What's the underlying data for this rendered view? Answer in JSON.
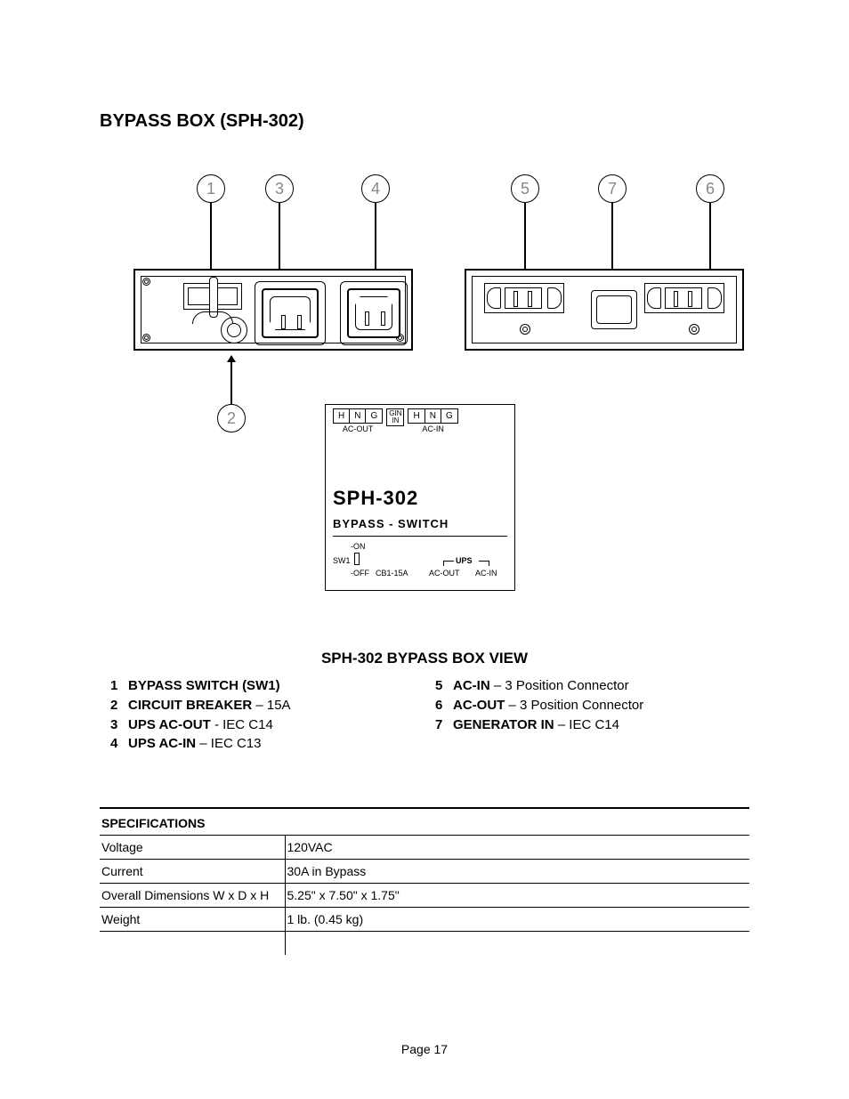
{
  "title": "BYPASS BOX (SPH-302)",
  "callouts": [
    "1",
    "2",
    "3",
    "4",
    "5",
    "6",
    "7"
  ],
  "label_panel": {
    "row_cells_left": [
      "H",
      "N",
      "G"
    ],
    "gin_top": "GIN",
    "gin_bottom": "IN",
    "row_cells_right": [
      "H",
      "N",
      "G"
    ],
    "sub_left": "AC-OUT",
    "sub_right": "AC-IN",
    "model": "SPH-302",
    "subtitle": "BYPASS - SWITCH",
    "on": "-ON",
    "off": "-OFF",
    "sw1": "SW1",
    "cb": "CB1-15A",
    "ups": "UPS",
    "acout": "AC-OUT",
    "acin": "AC-IN"
  },
  "caption": "SPH-302 BYPASS BOX VIEW",
  "legend_left": [
    {
      "n": "1",
      "b": "BYPASS SWITCH (SW1)",
      "r": ""
    },
    {
      "n": "2",
      "b": "CIRCUIT BREAKER",
      "r": " – 15A"
    },
    {
      "n": "3",
      "b": "UPS AC-OUT",
      "r": " - IEC C14"
    },
    {
      "n": "4",
      "b": "UPS AC-IN",
      "r": " – IEC C13"
    }
  ],
  "legend_right": [
    {
      "n": "5",
      "b": "AC-IN",
      "r": " – 3 Position Connector"
    },
    {
      "n": "6",
      "b": "AC-OUT",
      "r": " – 3 Position Connector"
    },
    {
      "n": "7",
      "b": "GENERATOR IN",
      "r": " – IEC C14"
    }
  ],
  "specs_header": "SPECIFICATIONS",
  "specs": [
    {
      "k": "Voltage",
      "v": "120VAC"
    },
    {
      "k": "Current",
      "v": "30A in Bypass"
    },
    {
      "k": "Overall Dimensions W x D x H",
      "v": "5.25\" x 7.50\" x 1.75\""
    },
    {
      "k": "Weight",
      "v": "1 lb. (0.45 kg)"
    }
  ],
  "page_footer": "Page 17"
}
